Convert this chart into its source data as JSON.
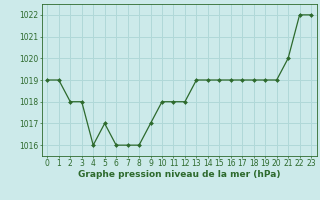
{
  "x": [
    0,
    1,
    2,
    3,
    4,
    5,
    6,
    7,
    8,
    9,
    10,
    11,
    12,
    13,
    14,
    15,
    16,
    17,
    18,
    19,
    20,
    21,
    22,
    23
  ],
  "y": [
    1019,
    1019,
    1018,
    1018,
    1016,
    1017,
    1016,
    1016,
    1016,
    1017,
    1018,
    1018,
    1018,
    1019,
    1019,
    1019,
    1019,
    1019,
    1019,
    1019,
    1019,
    1020,
    1022,
    1022
  ],
  "line_color": "#2d6a2d",
  "marker": "D",
  "marker_size": 2.0,
  "background_color": "#cceaea",
  "grid_color": "#b0d8d8",
  "xlabel": "Graphe pression niveau de la mer (hPa)",
  "xlabel_color": "#2d6a2d",
  "xlabel_fontsize": 6.5,
  "ylabel_fontsize": 5.5,
  "tick_color": "#2d6a2d",
  "tick_fontsize": 5.5,
  "ylim": [
    1015.5,
    1022.5
  ],
  "xlim": [
    -0.5,
    23.5
  ],
  "yticks": [
    1016,
    1017,
    1018,
    1019,
    1020,
    1021,
    1022
  ],
  "xticks": [
    0,
    1,
    2,
    3,
    4,
    5,
    6,
    7,
    8,
    9,
    10,
    11,
    12,
    13,
    14,
    15,
    16,
    17,
    18,
    19,
    20,
    21,
    22,
    23
  ]
}
